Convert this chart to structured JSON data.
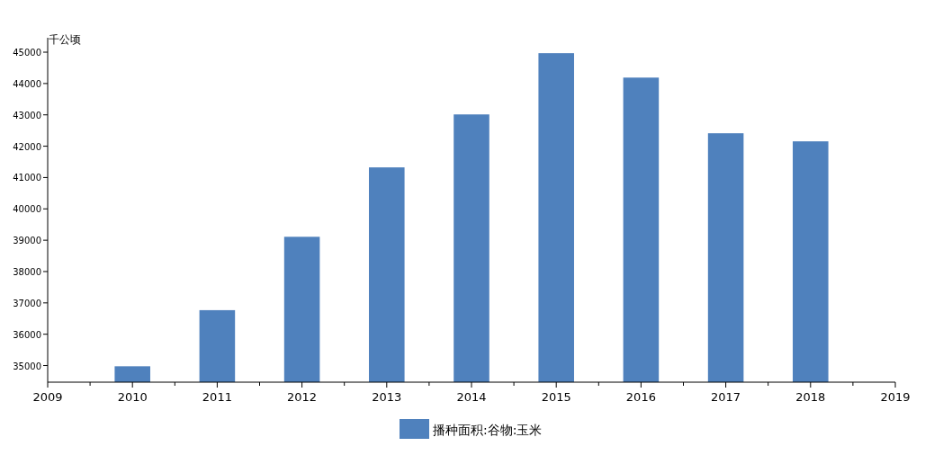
{
  "chart_data": {
    "type": "bar",
    "ylabel": "千公顷",
    "x": [
      2010,
      2011,
      2012,
      2013,
      2014,
      2015,
      2016,
      2017,
      2018
    ],
    "series": [
      {
        "name": "播种面积:谷物:玉米",
        "color": "#4f81bd",
        "values": [
          34977,
          36768,
          39109,
          41324,
          43014,
          44968,
          44189,
          42413,
          42155
        ]
      }
    ],
    "xlim": [
      2009,
      2019
    ],
    "xticks": [
      2009,
      {
        "value": 2009.5,
        "label": null
      },
      2010,
      {
        "value": 2010.5,
        "label": null
      },
      2011,
      {
        "value": 2011.5,
        "label": null
      },
      2012,
      {
        "value": 2012.5,
        "label": null
      },
      2013,
      {
        "value": 2013.5,
        "label": null
      },
      2014,
      {
        "value": 2014.5,
        "label": null
      },
      2015,
      {
        "value": 2015.5,
        "label": null
      },
      2016,
      {
        "value": 2016.5,
        "label": null
      },
      2017,
      {
        "value": 2017.5,
        "label": null
      },
      2018,
      {
        "value": 2018.5,
        "label": null
      },
      2019
    ],
    "ylim": [
      34470,
      45460
    ],
    "yticks": [
      35000,
      36000,
      37000,
      38000,
      39000,
      40000,
      41000,
      42000,
      43000,
      44000,
      45000
    ],
    "legend": "bottom",
    "grid": false
  }
}
